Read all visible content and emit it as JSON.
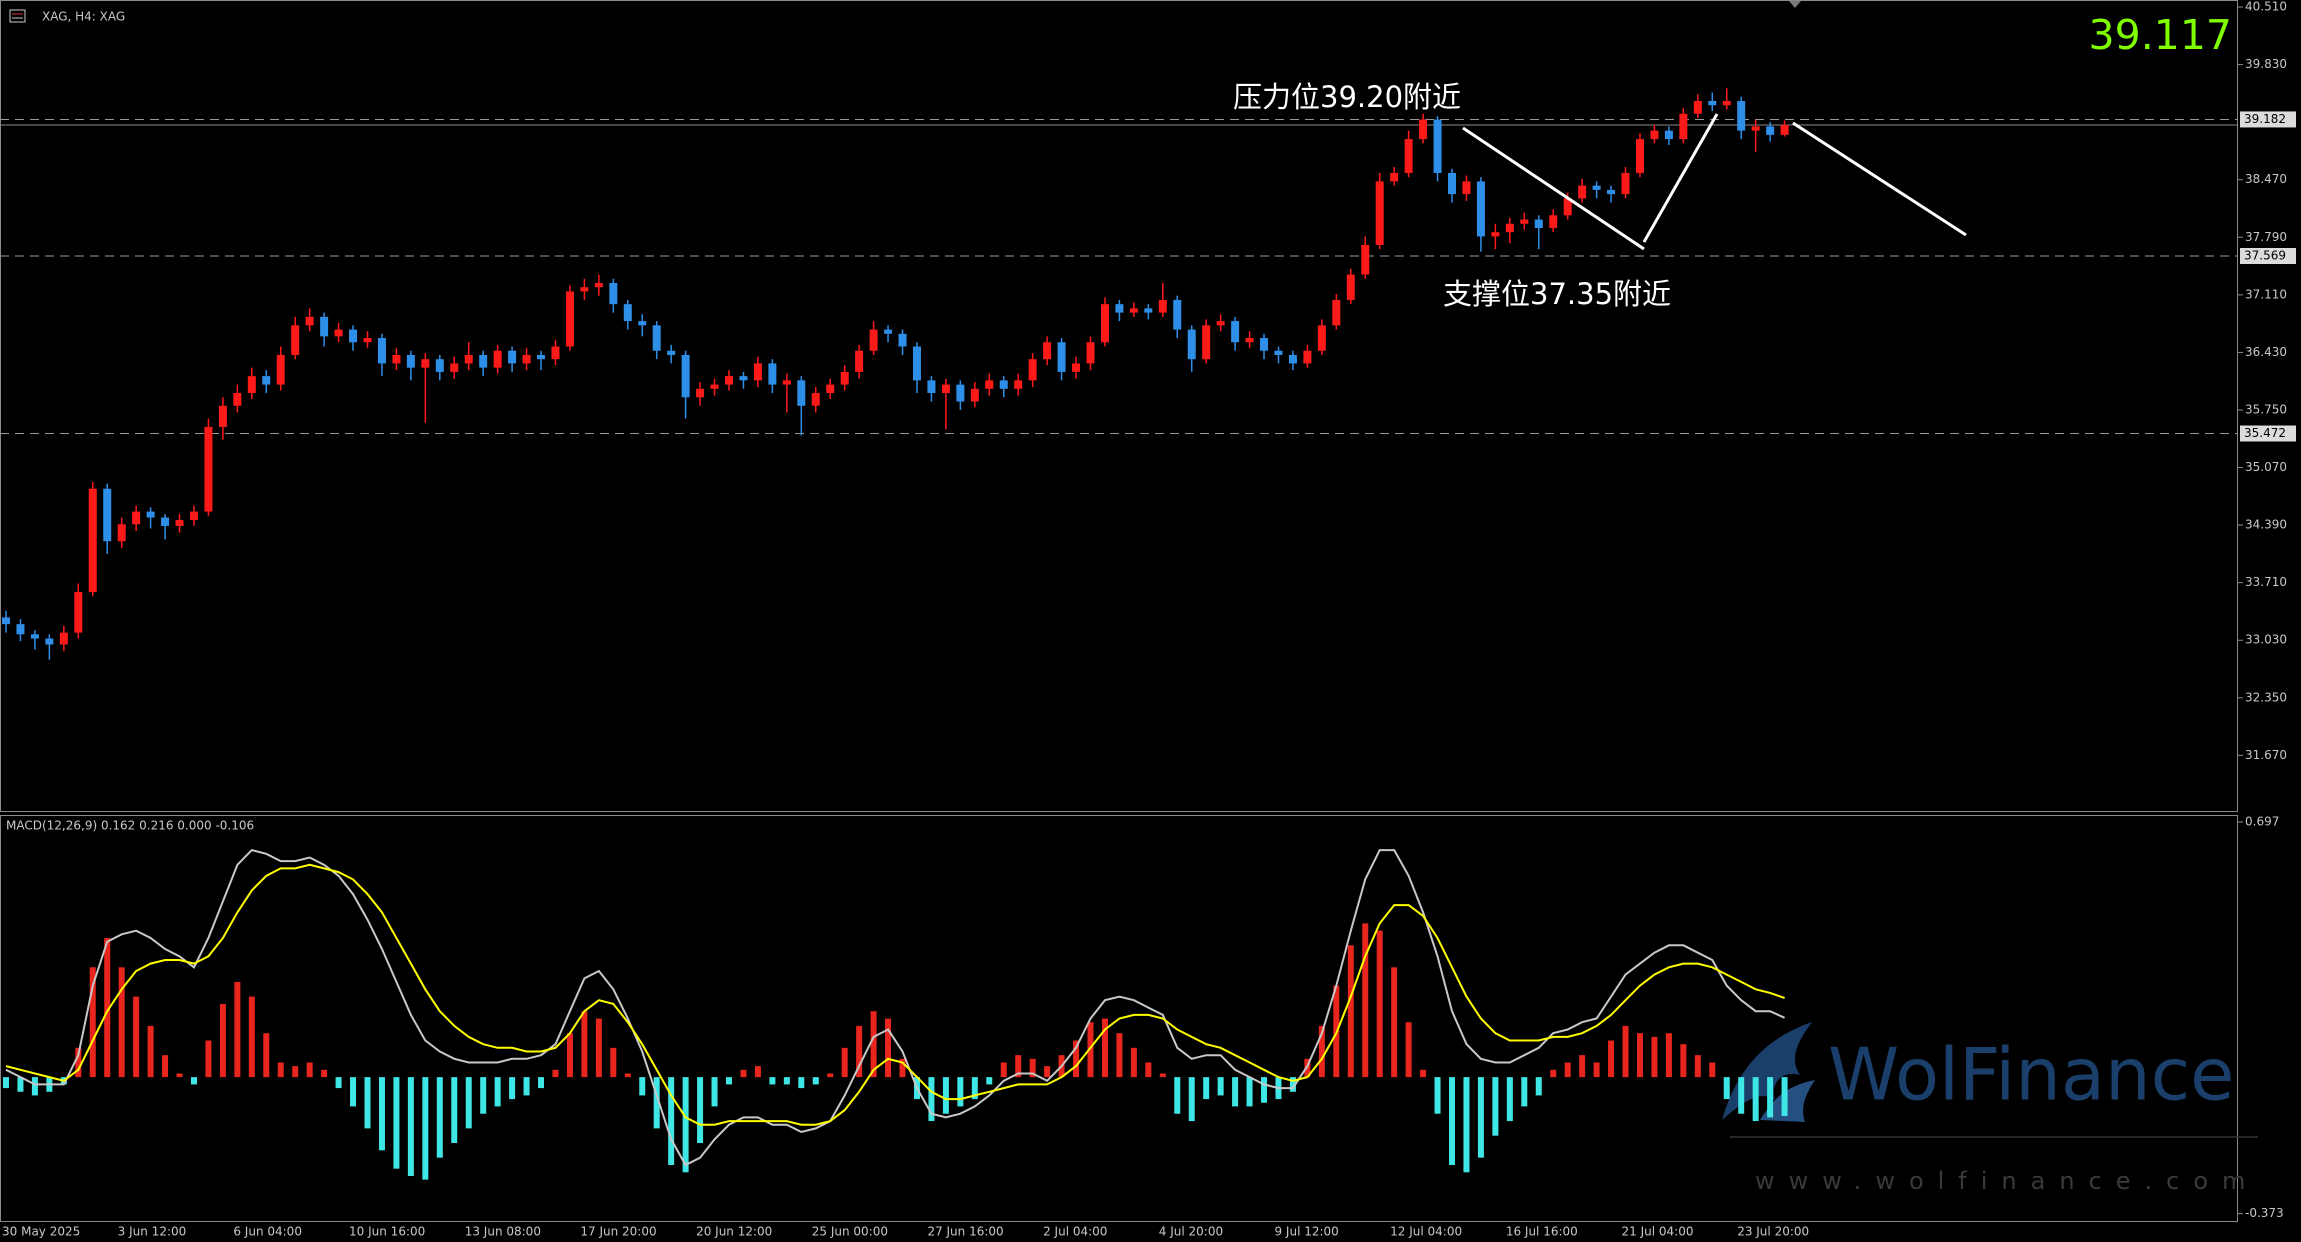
{
  "chart_data": [
    {
      "type": "candlestick",
      "title": "XAG, H4:  XAG",
      "last_price": 39.117,
      "categories": [
        "30 May 2025",
        null,
        null,
        null,
        null,
        null,
        null,
        null,
        "3 Jun 12:00",
        null,
        null,
        null,
        null,
        null,
        null,
        null,
        "6 Jun 04:00",
        null,
        null,
        null,
        null,
        null,
        null,
        null,
        "10 Jun 16:00",
        null,
        null,
        null,
        null,
        null,
        null,
        null,
        "13 Jun 08:00",
        null,
        null,
        null,
        null,
        null,
        null,
        null,
        "17 Jun 20:00",
        null,
        null,
        null,
        null,
        null,
        null,
        null,
        "20 Jun 12:00",
        null,
        null,
        null,
        null,
        null,
        null,
        null,
        "25 Jun 00:00",
        null,
        null,
        null,
        null,
        null,
        null,
        null,
        "27 Jun 16:00",
        null,
        null,
        null,
        null,
        null,
        null,
        null,
        "2 Jul 04:00",
        null,
        null,
        null,
        null,
        null,
        null,
        null,
        "4 Jul 20:00",
        null,
        null,
        null,
        null,
        null,
        null,
        null,
        "9 Jul 12:00",
        null,
        null,
        null,
        null,
        null,
        null,
        null,
        "12 Jul 04:00",
        null,
        null,
        null,
        null,
        null,
        null,
        null,
        "16 Jul 16:00",
        null,
        null,
        null,
        null,
        null,
        null,
        null,
        "21 Jul 04:00",
        null,
        null,
        null,
        null,
        null,
        null,
        null,
        "23 Jul 20:00",
        null,
        null,
        null
      ],
      "open": [
        33.3,
        33.22,
        33.1,
        33.05,
        32.98,
        33.12,
        33.6,
        34.82,
        34.2,
        34.4,
        34.55,
        34.48,
        34.38,
        34.45,
        34.55,
        35.55,
        35.8,
        35.95,
        36.15,
        36.05,
        36.4,
        36.75,
        36.85,
        36.62,
        36.7,
        36.55,
        36.6,
        36.3,
        36.4,
        36.25,
        36.35,
        36.2,
        36.3,
        36.4,
        36.25,
        36.45,
        36.3,
        36.4,
        36.35,
        36.5,
        37.15,
        37.2,
        37.25,
        37.0,
        36.8,
        36.75,
        36.45,
        36.4,
        35.9,
        36.0,
        36.05,
        36.15,
        36.1,
        36.3,
        36.05,
        36.1,
        35.8,
        35.95,
        36.05,
        36.2,
        36.45,
        36.7,
        36.65,
        36.5,
        36.1,
        35.95,
        36.05,
        35.85,
        36.0,
        36.1,
        36.0,
        36.1,
        36.35,
        36.55,
        36.2,
        36.3,
        36.55,
        37.0,
        36.9,
        36.95,
        36.9,
        37.05,
        36.7,
        36.35,
        36.75,
        36.8,
        36.55,
        36.6,
        36.45,
        36.4,
        36.3,
        36.45,
        36.75,
        37.05,
        37.35,
        37.7,
        38.45,
        38.55,
        38.95,
        39.18,
        38.55,
        38.3,
        38.45,
        37.8,
        37.85,
        37.95,
        38.0,
        37.9,
        38.05,
        38.25,
        38.4,
        38.35,
        38.3,
        38.55,
        38.95,
        39.05,
        38.95,
        39.25,
        39.4,
        39.35,
        39.4,
        39.05,
        39.1,
        39.0
      ],
      "high": [
        33.38,
        33.28,
        33.15,
        33.1,
        33.2,
        33.7,
        34.9,
        34.88,
        34.48,
        34.62,
        34.6,
        34.52,
        34.52,
        34.62,
        35.65,
        35.9,
        36.05,
        36.25,
        36.22,
        36.5,
        36.85,
        36.95,
        36.9,
        36.78,
        36.75,
        36.68,
        36.65,
        36.48,
        36.45,
        36.42,
        36.4,
        36.38,
        36.55,
        36.45,
        36.52,
        36.5,
        36.48,
        36.45,
        36.58,
        37.22,
        37.3,
        37.35,
        37.3,
        37.05,
        36.88,
        36.8,
        36.52,
        36.45,
        36.08,
        36.12,
        36.22,
        36.2,
        36.38,
        36.35,
        36.18,
        36.15,
        36.02,
        36.12,
        36.28,
        36.52,
        36.8,
        36.75,
        36.7,
        36.55,
        36.15,
        36.12,
        36.1,
        36.08,
        36.18,
        36.15,
        36.18,
        36.42,
        36.62,
        36.6,
        36.38,
        36.62,
        37.08,
        37.05,
        37.02,
        37.0,
        37.25,
        37.1,
        36.75,
        36.82,
        36.88,
        36.85,
        36.68,
        36.65,
        36.5,
        36.45,
        36.52,
        36.82,
        37.12,
        37.42,
        37.8,
        38.55,
        38.62,
        39.05,
        39.25,
        39.22,
        38.6,
        38.52,
        38.5,
        37.95,
        38.02,
        38.08,
        38.05,
        38.12,
        38.32,
        38.48,
        38.45,
        38.4,
        38.62,
        39.02,
        39.12,
        39.1,
        39.32,
        39.48,
        39.5,
        39.55,
        39.45,
        39.18,
        39.15,
        39.17
      ],
      "low": [
        33.12,
        33.02,
        32.92,
        32.8,
        32.9,
        33.05,
        33.55,
        34.05,
        34.12,
        34.32,
        34.35,
        34.22,
        34.3,
        34.38,
        34.5,
        35.4,
        35.72,
        35.88,
        35.95,
        35.98,
        36.35,
        36.68,
        36.5,
        36.55,
        36.45,
        36.48,
        36.15,
        36.22,
        36.1,
        35.6,
        36.1,
        36.12,
        36.22,
        36.15,
        36.18,
        36.2,
        36.22,
        36.22,
        36.28,
        36.45,
        37.05,
        37.1,
        36.9,
        36.7,
        36.62,
        36.35,
        36.3,
        35.65,
        35.8,
        35.92,
        35.98,
        36.0,
        36.02,
        35.95,
        35.72,
        35.45,
        35.72,
        35.88,
        35.98,
        36.12,
        36.4,
        36.55,
        36.4,
        35.95,
        35.85,
        35.52,
        35.75,
        35.78,
        35.92,
        35.9,
        35.92,
        36.02,
        36.28,
        36.1,
        36.12,
        36.22,
        36.5,
        36.8,
        36.85,
        36.82,
        36.85,
        36.6,
        36.2,
        36.3,
        36.68,
        36.45,
        36.48,
        36.35,
        36.3,
        36.22,
        36.25,
        36.4,
        36.7,
        37.0,
        37.3,
        37.65,
        38.4,
        38.5,
        38.9,
        38.45,
        38.2,
        38.22,
        37.62,
        37.65,
        37.72,
        37.88,
        37.65,
        37.85,
        38.0,
        38.2,
        38.25,
        38.2,
        38.25,
        38.5,
        38.9,
        38.88,
        38.9,
        39.2,
        39.28,
        39.3,
        38.95,
        38.8,
        38.92,
        38.98
      ],
      "close": [
        33.22,
        33.1,
        33.05,
        32.98,
        33.12,
        33.6,
        34.82,
        34.2,
        34.4,
        34.55,
        34.48,
        34.38,
        34.45,
        34.55,
        35.55,
        35.8,
        35.95,
        36.15,
        36.05,
        36.4,
        36.75,
        36.85,
        36.62,
        36.7,
        36.55,
        36.6,
        36.3,
        36.4,
        36.25,
        36.35,
        36.2,
        36.3,
        36.4,
        36.25,
        36.45,
        36.3,
        36.4,
        36.35,
        36.5,
        37.15,
        37.2,
        37.25,
        37.0,
        36.8,
        36.75,
        36.45,
        36.4,
        35.9,
        36.0,
        36.05,
        36.15,
        36.1,
        36.3,
        36.05,
        36.1,
        35.8,
        35.95,
        36.05,
        36.2,
        36.45,
        36.7,
        36.65,
        36.5,
        36.1,
        35.95,
        36.05,
        35.85,
        36.0,
        36.1,
        36.0,
        36.1,
        36.35,
        36.55,
        36.2,
        36.3,
        36.55,
        37.0,
        36.9,
        36.95,
        36.9,
        37.05,
        36.7,
        36.35,
        36.75,
        36.8,
        36.55,
        36.6,
        36.45,
        36.4,
        36.3,
        36.45,
        36.75,
        37.05,
        37.35,
        37.7,
        38.45,
        38.55,
        38.95,
        39.18,
        38.55,
        38.3,
        38.45,
        37.8,
        37.85,
        37.95,
        38.0,
        37.9,
        38.05,
        38.25,
        38.4,
        38.35,
        38.3,
        38.55,
        38.95,
        39.05,
        38.95,
        39.25,
        39.4,
        39.35,
        39.4,
        39.05,
        39.1,
        39.0,
        39.117
      ],
      "up_color": "#ff1a1a",
      "down_color": "#2e8fe8",
      "price_line_color": "#8a8a8a",
      "level_color": "#9a9a9a",
      "levels": [
        39.182,
        37.569,
        35.472
      ],
      "annotations": [
        "压力位39.20附近",
        "支撑位37.35附近"
      ],
      "ylim": [
        31.013,
        40.593
      ],
      "yticks": [
        {
          "value": 40.51,
          "label": "40.510"
        },
        {
          "value": 39.83,
          "label": "39.830"
        },
        {
          "value": 38.47,
          "label": "38.470"
        },
        {
          "value": 37.79,
          "label": "37.790"
        },
        {
          "value": 37.11,
          "label": "37.110"
        },
        {
          "value": 36.43,
          "label": "36.430"
        },
        {
          "value": 35.75,
          "label": "35.750"
        },
        {
          "value": 35.07,
          "label": "35.070"
        },
        {
          "value": 34.39,
          "label": "34.390"
        },
        {
          "value": 33.71,
          "label": "33.710"
        },
        {
          "value": 33.03,
          "label": "33.030"
        },
        {
          "value": 32.35,
          "label": "32.350"
        },
        {
          "value": 31.67,
          "label": "31.670"
        }
      ]
    },
    {
      "type": "macd",
      "title": "MACD(12,26,9) 0.162 0.216 0.000 -0.106",
      "histogram": [
        -0.03,
        -0.04,
        -0.05,
        -0.04,
        -0.02,
        0.08,
        0.3,
        0.38,
        0.3,
        0.22,
        0.14,
        0.06,
        0.01,
        -0.02,
        0.1,
        0.2,
        0.26,
        0.22,
        0.12,
        0.04,
        0.03,
        0.04,
        0.02,
        -0.03,
        -0.08,
        -0.14,
        -0.2,
        -0.25,
        -0.27,
        -0.28,
        -0.22,
        -0.18,
        -0.14,
        -0.1,
        -0.08,
        -0.06,
        -0.05,
        -0.03,
        0.02,
        0.12,
        0.18,
        0.16,
        0.08,
        0.01,
        -0.05,
        -0.14,
        -0.24,
        -0.26,
        -0.18,
        -0.08,
        -0.02,
        0.02,
        0.03,
        -0.02,
        -0.02,
        -0.03,
        -0.02,
        0.01,
        0.08,
        0.14,
        0.18,
        0.16,
        0.05,
        -0.06,
        -0.12,
        -0.1,
        -0.08,
        -0.06,
        -0.02,
        0.04,
        0.06,
        0.05,
        0.03,
        0.06,
        0.1,
        0.15,
        0.16,
        0.12,
        0.08,
        0.04,
        0.01,
        -0.1,
        -0.12,
        -0.06,
        -0.05,
        -0.08,
        -0.08,
        -0.07,
        -0.06,
        -0.04,
        0.05,
        0.14,
        0.25,
        0.36,
        0.42,
        0.4,
        0.3,
        0.15,
        0.02,
        -0.1,
        -0.24,
        -0.26,
        -0.22,
        -0.16,
        -0.12,
        -0.08,
        -0.05,
        0.02,
        0.04,
        0.06,
        0.04,
        0.1,
        0.14,
        0.12,
        0.11,
        0.12,
        0.09,
        0.06,
        0.04,
        -0.06,
        -0.1,
        -0.12,
        -0.11,
        -0.106
      ],
      "pos_color": "#e8261e",
      "neg_color": "#3ee6e6",
      "lines": [
        {
          "color": "#c8c8c8",
          "values": [
            0.02,
            0.0,
            -0.02,
            -0.02,
            -0.02,
            0.06,
            0.25,
            0.37,
            0.39,
            0.4,
            0.38,
            0.35,
            0.33,
            0.3,
            0.38,
            0.48,
            0.58,
            0.62,
            0.61,
            0.59,
            0.59,
            0.6,
            0.58,
            0.55,
            0.5,
            0.43,
            0.35,
            0.26,
            0.17,
            0.1,
            0.07,
            0.05,
            0.04,
            0.04,
            0.04,
            0.05,
            0.05,
            0.06,
            0.09,
            0.18,
            0.27,
            0.29,
            0.24,
            0.16,
            0.07,
            -0.05,
            -0.17,
            -0.24,
            -0.22,
            -0.17,
            -0.13,
            -0.11,
            -0.11,
            -0.13,
            -0.13,
            -0.15,
            -0.14,
            -0.12,
            -0.05,
            0.03,
            0.11,
            0.13,
            0.07,
            -0.03,
            -0.1,
            -0.11,
            -0.1,
            -0.08,
            -0.05,
            -0.01,
            0.01,
            0.01,
            -0.01,
            0.03,
            0.08,
            0.16,
            0.21,
            0.22,
            0.21,
            0.19,
            0.17,
            0.08,
            0.05,
            0.06,
            0.06,
            0.02,
            0.0,
            -0.02,
            -0.03,
            -0.03,
            0.03,
            0.12,
            0.25,
            0.4,
            0.54,
            0.62,
            0.62,
            0.55,
            0.45,
            0.33,
            0.18,
            0.09,
            0.05,
            0.04,
            0.04,
            0.06,
            0.08,
            0.12,
            0.13,
            0.15,
            0.16,
            0.22,
            0.28,
            0.31,
            0.34,
            0.36,
            0.36,
            0.34,
            0.32,
            0.25,
            0.21,
            0.18,
            0.18,
            0.162
          ]
        },
        {
          "color": "#ffff00",
          "values": [
            0.03,
            0.02,
            0.01,
            0.0,
            -0.01,
            0.02,
            0.1,
            0.18,
            0.24,
            0.29,
            0.31,
            0.32,
            0.32,
            0.31,
            0.33,
            0.38,
            0.45,
            0.51,
            0.55,
            0.57,
            0.57,
            0.58,
            0.57,
            0.56,
            0.54,
            0.5,
            0.45,
            0.38,
            0.31,
            0.24,
            0.18,
            0.14,
            0.11,
            0.09,
            0.08,
            0.08,
            0.07,
            0.07,
            0.08,
            0.12,
            0.18,
            0.21,
            0.2,
            0.15,
            0.09,
            0.02,
            -0.05,
            -0.11,
            -0.13,
            -0.13,
            -0.12,
            -0.12,
            -0.12,
            -0.12,
            -0.12,
            -0.13,
            -0.13,
            -0.12,
            -0.09,
            -0.04,
            0.02,
            0.05,
            0.04,
            0.0,
            -0.04,
            -0.06,
            -0.06,
            -0.05,
            -0.04,
            -0.03,
            -0.02,
            -0.02,
            -0.02,
            0.0,
            0.03,
            0.08,
            0.13,
            0.16,
            0.17,
            0.17,
            0.16,
            0.13,
            0.11,
            0.09,
            0.08,
            0.06,
            0.04,
            0.02,
            0.0,
            -0.01,
            0.0,
            0.05,
            0.12,
            0.22,
            0.33,
            0.42,
            0.47,
            0.47,
            0.44,
            0.38,
            0.3,
            0.22,
            0.16,
            0.12,
            0.1,
            0.1,
            0.1,
            0.11,
            0.11,
            0.12,
            0.14,
            0.17,
            0.21,
            0.25,
            0.28,
            0.3,
            0.31,
            0.31,
            0.3,
            0.28,
            0.26,
            0.24,
            0.23,
            0.216
          ]
        }
      ],
      "ylim": [
        -0.393,
        0.716
      ],
      "yticks": [
        0.697,
        -0.373
      ]
    }
  ],
  "watermark": {
    "brand": "WolFinance",
    "url": "www.wolfinance.com"
  }
}
